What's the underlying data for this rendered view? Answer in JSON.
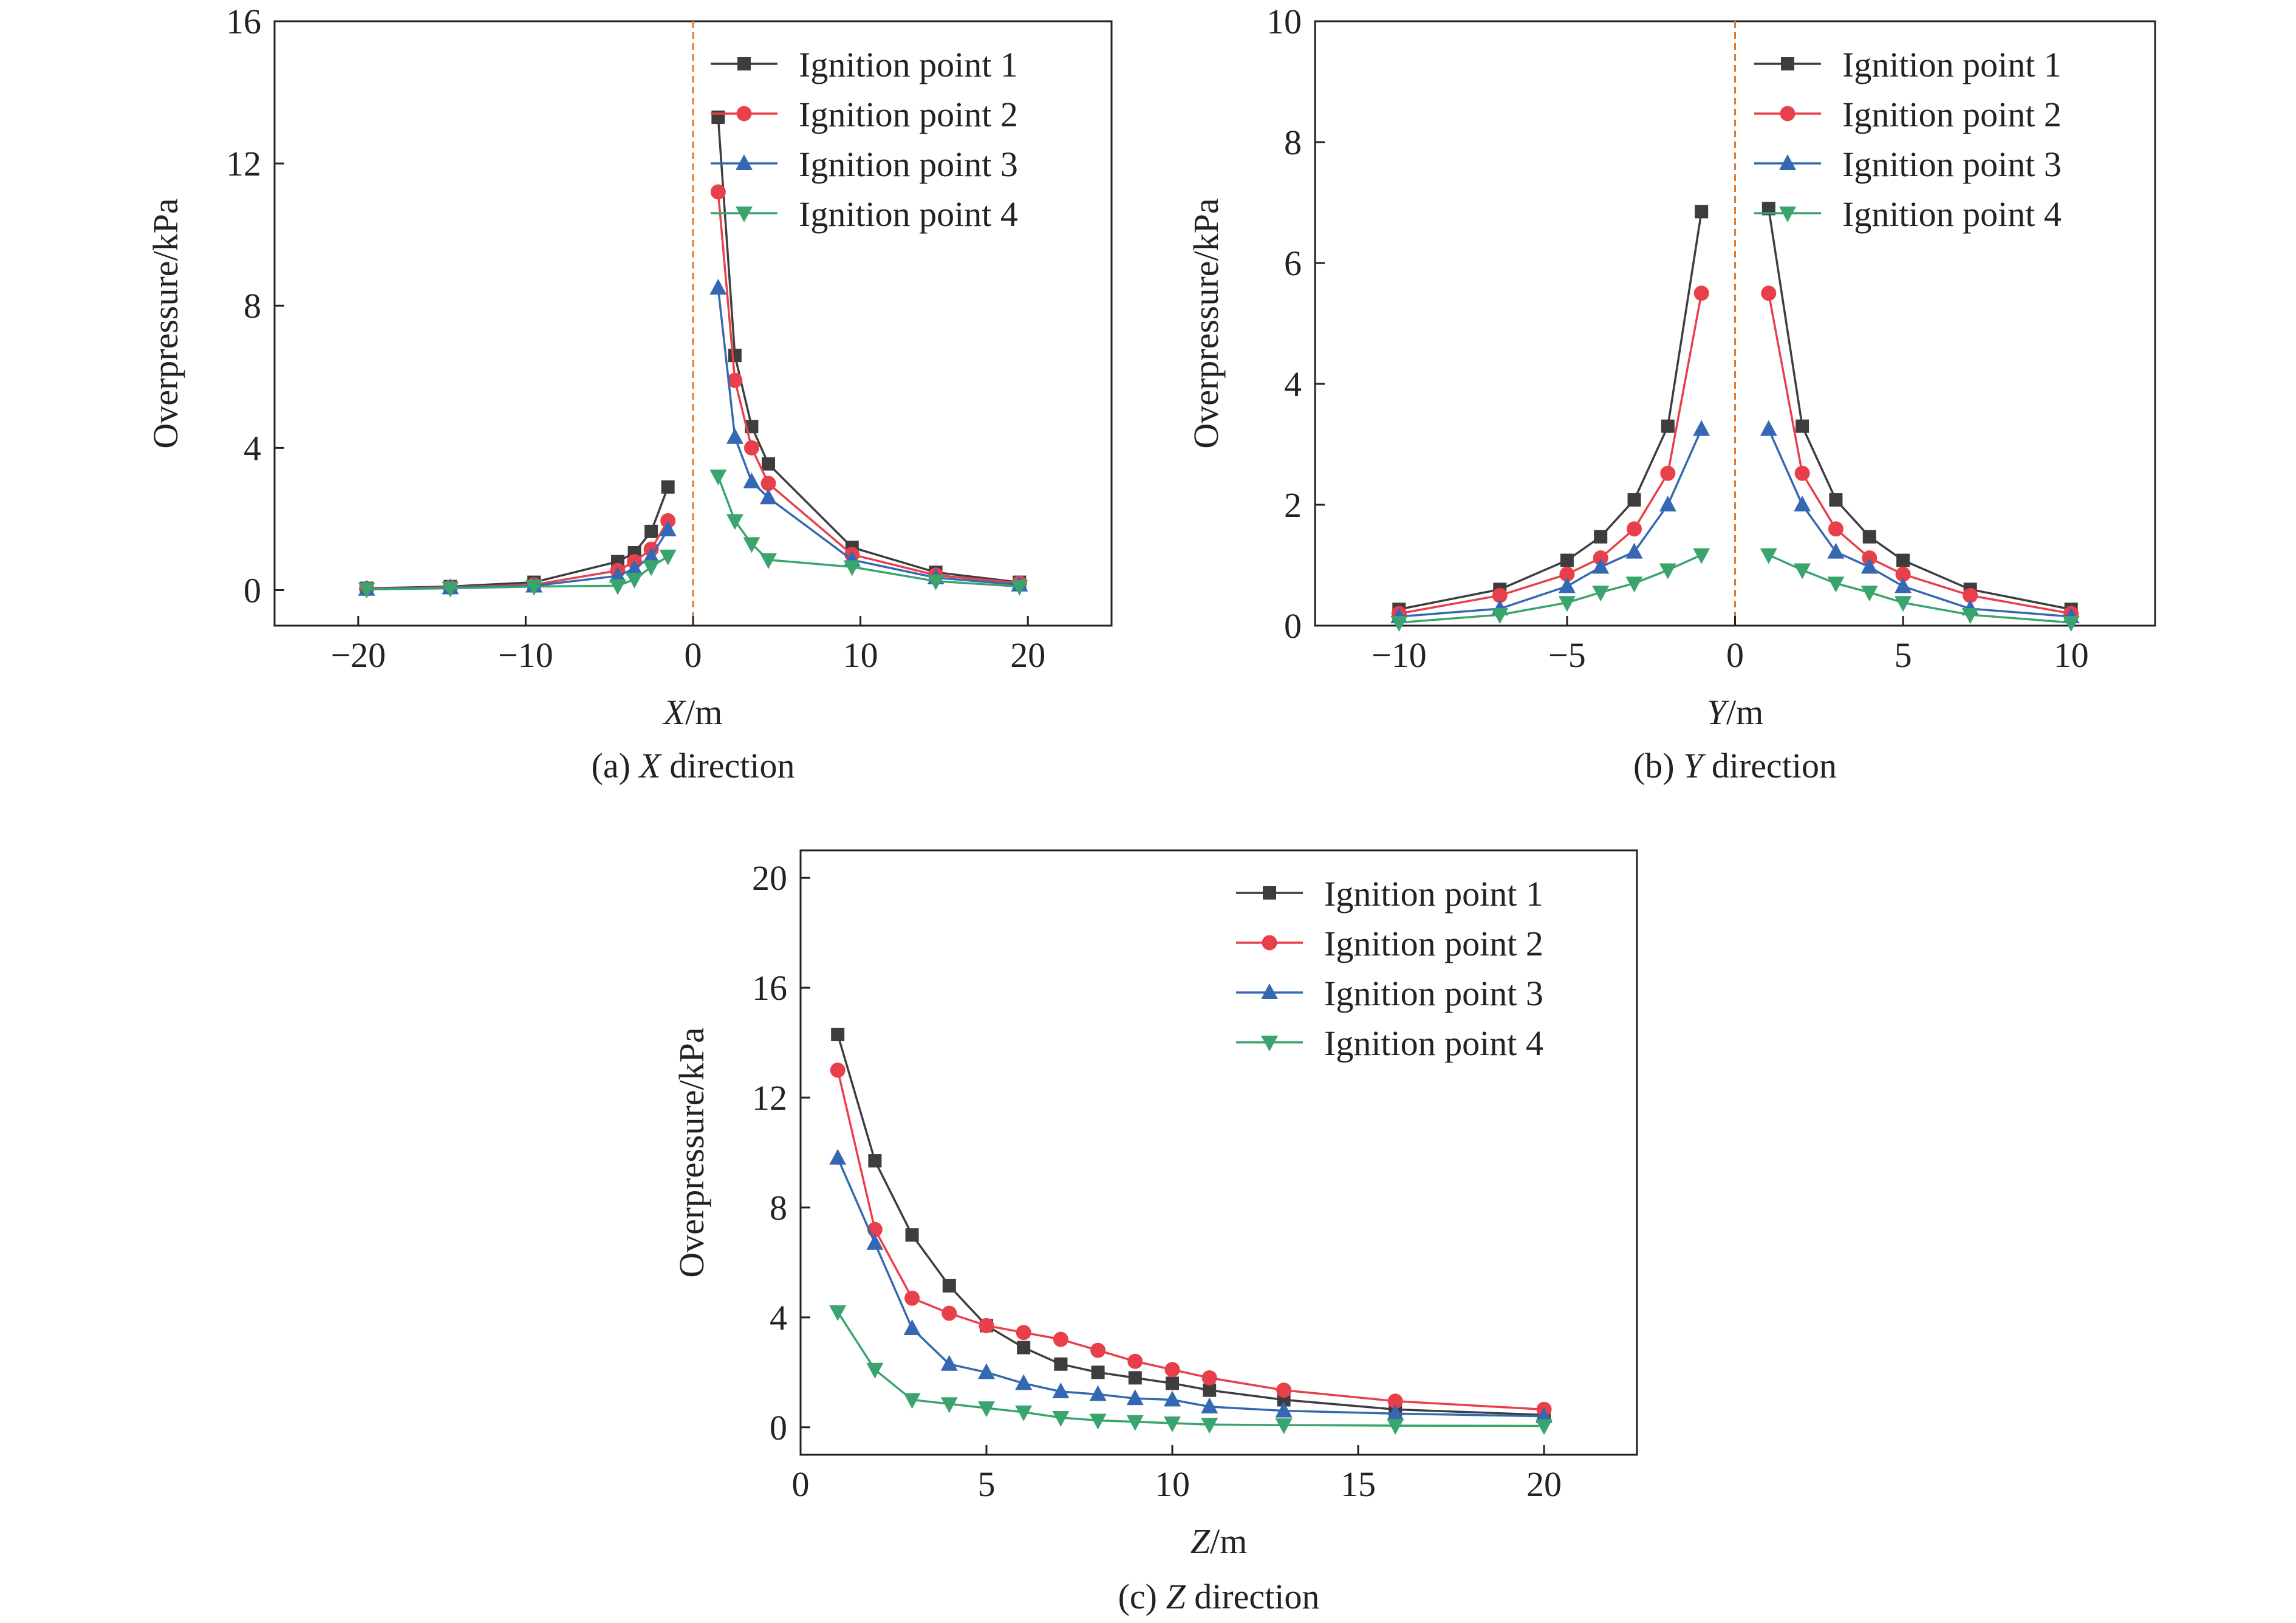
{
  "colors": {
    "series": [
      "#3d3d3d",
      "#e8404a",
      "#3568b2",
      "#3aa46e"
    ],
    "zero_line": "#e07a2c",
    "axis": "#222222"
  },
  "markers": [
    "square",
    "circle",
    "triangle-up",
    "triangle-down"
  ],
  "chart_data": [
    {
      "type": "line",
      "panel": "a",
      "caption": {
        "prefix": "(a) ",
        "italic": "X",
        "suffix": " direction"
      },
      "xlabel": {
        "italic": "X",
        "rest": "/m"
      },
      "ylabel": "Overpressure/kPa",
      "xlim": [
        -25,
        25
      ],
      "ylim": [
        -1,
        16
      ],
      "xticks": [
        -20,
        -10,
        0,
        10,
        20
      ],
      "yticks": [
        0,
        4,
        8,
        12,
        16
      ],
      "zero_line": true,
      "grid": false,
      "legend_position": "top-right",
      "series": [
        {
          "name": "Ignition point 1",
          "segments": [
            {
              "x": [
                -19.5,
                -14.5,
                -9.5,
                -4.5,
                -3.5,
                -2.5,
                -1.5
              ],
              "y": [
                0.05,
                0.1,
                0.22,
                0.8,
                1.05,
                1.65,
                2.9
              ]
            },
            {
              "x": [
                1.5,
                2.5,
                3.5,
                4.5,
                9.5,
                14.5,
                19.5
              ],
              "y": [
                13.3,
                6.6,
                4.6,
                3.55,
                1.2,
                0.5,
                0.22
              ]
            }
          ]
        },
        {
          "name": "Ignition point 2",
          "segments": [
            {
              "x": [
                -19.5,
                -14.5,
                -9.5,
                -4.5,
                -3.5,
                -2.5,
                -1.5
              ],
              "y": [
                0.04,
                0.08,
                0.15,
                0.55,
                0.8,
                1.15,
                1.95
              ]
            },
            {
              "x": [
                1.5,
                2.5,
                3.5,
                4.5,
                9.5,
                14.5,
                19.5
              ],
              "y": [
                11.2,
                5.9,
                4.0,
                3.0,
                1.0,
                0.42,
                0.2
              ]
            }
          ]
        },
        {
          "name": "Ignition point 3",
          "segments": [
            {
              "x": [
                -19.5,
                -14.5,
                -9.5,
                -4.5,
                -3.5,
                -2.5,
                -1.5
              ],
              "y": [
                0.03,
                0.07,
                0.12,
                0.4,
                0.6,
                0.95,
                1.7
              ]
            },
            {
              "x": [
                1.5,
                2.5,
                3.5,
                4.5,
                9.5,
                14.5,
                19.5
              ],
              "y": [
                8.5,
                4.3,
                3.05,
                2.6,
                0.85,
                0.35,
                0.15
              ]
            }
          ]
        },
        {
          "name": "Ignition point 4",
          "segments": [
            {
              "x": [
                -19.5,
                -14.5,
                -9.5,
                -4.5,
                -3.5,
                -2.5,
                -1.5
              ],
              "y": [
                0.02,
                0.05,
                0.1,
                0.12,
                0.3,
                0.65,
                0.95
              ]
            },
            {
              "x": [
                1.5,
                2.5,
                3.5,
                4.5,
                9.5,
                14.5,
                19.5
              ],
              "y": [
                3.2,
                1.95,
                1.3,
                0.85,
                0.65,
                0.25,
                0.1
              ]
            }
          ]
        }
      ]
    },
    {
      "type": "line",
      "panel": "b",
      "caption": {
        "prefix": "(b) ",
        "italic": "Y",
        "suffix": " direction"
      },
      "xlabel": {
        "italic": "Y",
        "rest": "/m"
      },
      "ylabel": "Overpressure/kPa",
      "xlim": [
        -12.5,
        12.5
      ],
      "ylim": [
        0,
        10
      ],
      "xticks": [
        -10,
        -5,
        0,
        5,
        10
      ],
      "yticks": [
        0,
        2,
        4,
        6,
        8,
        10
      ],
      "zero_line": true,
      "grid": false,
      "legend_position": "top-right",
      "series": [
        {
          "name": "Ignition point 1",
          "segments": [
            {
              "x": [
                -10,
                -7,
                -5,
                -4,
                -3,
                -2,
                -1
              ],
              "y": [
                0.27,
                0.6,
                1.08,
                1.47,
                2.08,
                3.3,
                6.85
              ]
            },
            {
              "x": [
                1,
                2,
                3,
                4,
                5,
                7,
                10
              ],
              "y": [
                6.9,
                3.3,
                2.08,
                1.47,
                1.08,
                0.6,
                0.27
              ]
            }
          ]
        },
        {
          "name": "Ignition point 2",
          "segments": [
            {
              "x": [
                -10,
                -7,
                -5,
                -4,
                -3,
                -2,
                -1
              ],
              "y": [
                0.2,
                0.5,
                0.85,
                1.12,
                1.6,
                2.52,
                5.5
              ]
            },
            {
              "x": [
                1,
                2,
                3,
                4,
                5,
                7,
                10
              ],
              "y": [
                5.5,
                2.52,
                1.6,
                1.12,
                0.85,
                0.5,
                0.2
              ]
            }
          ]
        },
        {
          "name": "Ignition point 3",
          "segments": [
            {
              "x": [
                -10,
                -7,
                -5,
                -4,
                -3,
                -2,
                -1
              ],
              "y": [
                0.15,
                0.28,
                0.65,
                0.97,
                1.22,
                2.0,
                3.25
              ]
            },
            {
              "x": [
                1,
                2,
                3,
                4,
                5,
                7,
                10
              ],
              "y": [
                3.25,
                2.0,
                1.22,
                0.97,
                0.65,
                0.28,
                0.15
              ]
            }
          ]
        },
        {
          "name": "Ignition point 4",
          "segments": [
            {
              "x": [
                -10,
                -7,
                -5,
                -4,
                -3,
                -2,
                -1
              ],
              "y": [
                0.05,
                0.18,
                0.38,
                0.55,
                0.7,
                0.92,
                1.17
              ]
            },
            {
              "x": [
                1,
                2,
                3,
                4,
                5,
                7,
                10
              ],
              "y": [
                1.17,
                0.92,
                0.7,
                0.55,
                0.38,
                0.18,
                0.05
              ]
            }
          ]
        }
      ]
    },
    {
      "type": "line",
      "panel": "c",
      "caption": {
        "prefix": "(c) ",
        "italic": "Z",
        "suffix": " direction"
      },
      "xlabel": {
        "italic": "Z",
        "rest": "/m"
      },
      "ylabel": "Overpressure/kPa",
      "xlim": [
        0,
        22.5
      ],
      "ylim": [
        -1,
        21
      ],
      "xticks": [
        0,
        5,
        10,
        15,
        20
      ],
      "yticks": [
        0,
        4,
        8,
        12,
        16,
        20
      ],
      "zero_line": false,
      "grid": false,
      "legend_position": "top-right",
      "series": [
        {
          "name": "Ignition point 1",
          "segments": [
            {
              "x": [
                1,
                2,
                3,
                4,
                5,
                6,
                7,
                8,
                9,
                10,
                11,
                13,
                16,
                20
              ],
              "y": [
                14.3,
                9.7,
                7.0,
                5.15,
                3.7,
                2.9,
                2.3,
                2.0,
                1.8,
                1.6,
                1.35,
                1.0,
                0.65,
                0.45
              ]
            }
          ]
        },
        {
          "name": "Ignition point 2",
          "segments": [
            {
              "x": [
                1,
                2,
                3,
                4,
                5,
                6,
                7,
                8,
                9,
                10,
                11,
                13,
                16,
                20
              ],
              "y": [
                13.0,
                7.2,
                4.7,
                4.15,
                3.7,
                3.45,
                3.2,
                2.8,
                2.4,
                2.1,
                1.8,
                1.35,
                0.95,
                0.65
              ]
            }
          ]
        },
        {
          "name": "Ignition point 3",
          "segments": [
            {
              "x": [
                1,
                2,
                3,
                4,
                5,
                6,
                7,
                8,
                9,
                10,
                11,
                13,
                16,
                20
              ],
              "y": [
                9.8,
                6.7,
                3.6,
                2.3,
                2.0,
                1.6,
                1.3,
                1.2,
                1.05,
                1.0,
                0.75,
                0.6,
                0.5,
                0.4
              ]
            }
          ]
        },
        {
          "name": "Ignition point 4",
          "segments": [
            {
              "x": [
                1,
                2,
                3,
                4,
                5,
                6,
                7,
                8,
                9,
                10,
                11,
                13,
                16,
                20
              ],
              "y": [
                4.2,
                2.1,
                1.0,
                0.85,
                0.7,
                0.55,
                0.35,
                0.25,
                0.2,
                0.15,
                0.1,
                0.08,
                0.06,
                0.05
              ]
            }
          ]
        }
      ]
    }
  ]
}
